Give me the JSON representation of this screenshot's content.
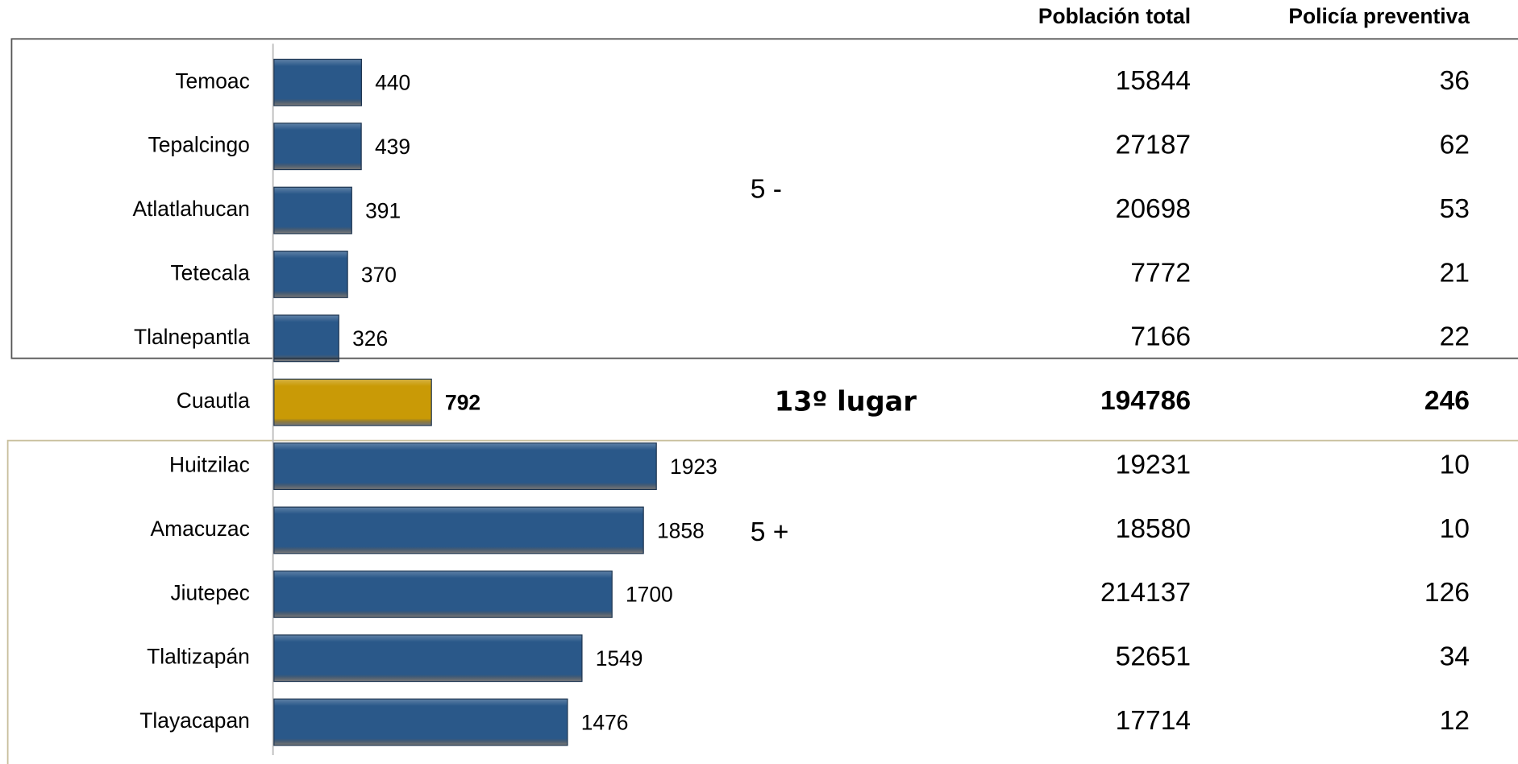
{
  "chart_data": {
    "type": "barh",
    "categories": [
      "Temoac",
      "Tepalcingo",
      "Atlatlahucan",
      "Tetecala",
      "Tlalnepantla",
      "Cuautla",
      "Huitzilac",
      "Amacuzac",
      "Jiutepec",
      "Tlaltizapán",
      "Tlayacapan"
    ],
    "values": [
      440,
      439,
      391,
      370,
      326,
      792,
      1923,
      1858,
      1700,
      1549,
      1476
    ],
    "colors": [
      "#2a5889",
      "#2a5889",
      "#2a5889",
      "#2a5889",
      "#2a5889",
      "#c99a06",
      "#2a5889",
      "#2a5889",
      "#2a5889",
      "#2a5889",
      "#2a5889"
    ],
    "columns": [
      {
        "name": "Población total",
        "values": [
          15844,
          27187,
          20698,
          7772,
          7166,
          194786,
          19231,
          18580,
          214137,
          52651,
          17714
        ]
      },
      {
        "name": "Policía preventiva",
        "values": [
          36,
          62,
          53,
          21,
          22,
          246,
          10,
          10,
          126,
          34,
          12
        ]
      }
    ],
    "annotations": [
      "5 -",
      "13º lugar",
      "5 +"
    ]
  }
}
